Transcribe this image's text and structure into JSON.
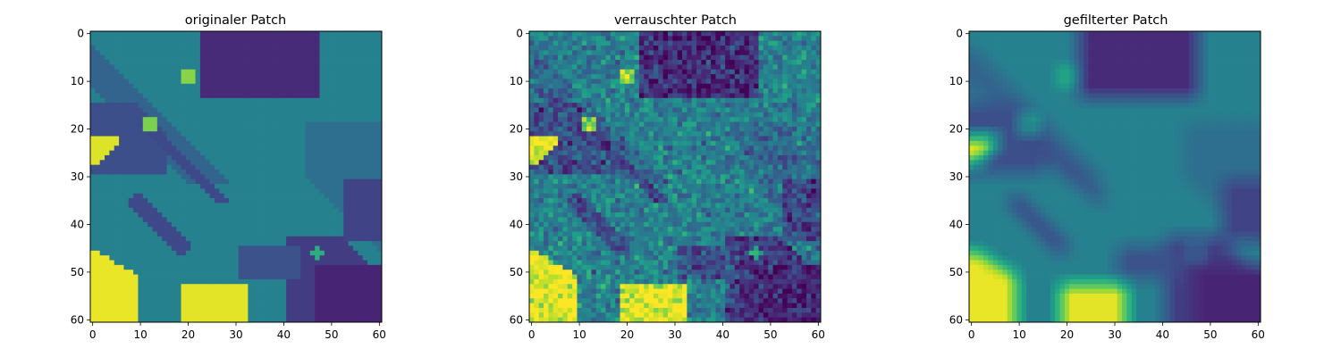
{
  "chart_data": [
    {
      "type": "heatmap",
      "title": "originaler Patch",
      "xlabel": "",
      "ylabel": "",
      "x_ticks": [
        0,
        10,
        20,
        30,
        40,
        50,
        60
      ],
      "y_ticks": [
        0,
        10,
        20,
        30,
        40,
        50,
        60
      ],
      "xlim": [
        -0.5,
        60.5
      ],
      "ylim": [
        60.5,
        -0.5
      ],
      "colormap": "viridis",
      "grid": false,
      "noise": 0.0,
      "blur": 0
    },
    {
      "type": "heatmap",
      "title": "verrauschter Patch",
      "xlabel": "",
      "ylabel": "",
      "x_ticks": [
        0,
        10,
        20,
        30,
        40,
        50,
        60
      ],
      "y_ticks": [
        0,
        10,
        20,
        30,
        40,
        50,
        60
      ],
      "xlim": [
        -0.5,
        60.5
      ],
      "ylim": [
        60.5,
        -0.5
      ],
      "colormap": "viridis",
      "grid": false,
      "noise": 0.09,
      "blur": 0
    },
    {
      "type": "heatmap",
      "title": "gefilterter Patch",
      "xlabel": "",
      "ylabel": "",
      "x_ticks": [
        0,
        10,
        20,
        30,
        40,
        50,
        60
      ],
      "y_ticks": [
        0,
        10,
        20,
        30,
        40,
        50,
        60
      ],
      "xlim": [
        -0.5,
        60.5
      ],
      "ylim": [
        60.5,
        -0.5
      ],
      "colormap": "viridis",
      "grid": false,
      "noise": 0.0,
      "blur": 2
    }
  ]
}
